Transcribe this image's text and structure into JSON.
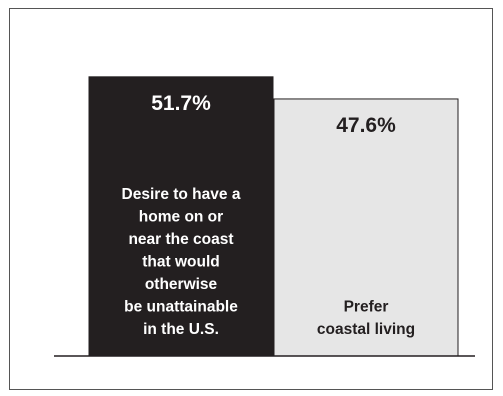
{
  "chart_data": {
    "type": "bar",
    "categories": [
      "Desire to have a home on or near the coast that would otherwise be unattainable in the U.S.",
      "Prefer coastal living"
    ],
    "values": [
      51.7,
      47.6
    ],
    "value_labels": [
      "51.7%",
      "47.6%"
    ],
    "label_lines": [
      [
        "Desire to have a",
        "home on or",
        "near the coast",
        "that would",
        "otherwise",
        "be unattainable",
        "in the U.S."
      ],
      [
        "Prefer",
        "coastal living"
      ]
    ],
    "colors": [
      "#231f20",
      "#e6e6e6"
    ],
    "text_colors": [
      "#ffffff",
      "#231f20"
    ],
    "title": "",
    "xlabel": "",
    "ylabel": "",
    "grid": false,
    "legend": "none"
  }
}
